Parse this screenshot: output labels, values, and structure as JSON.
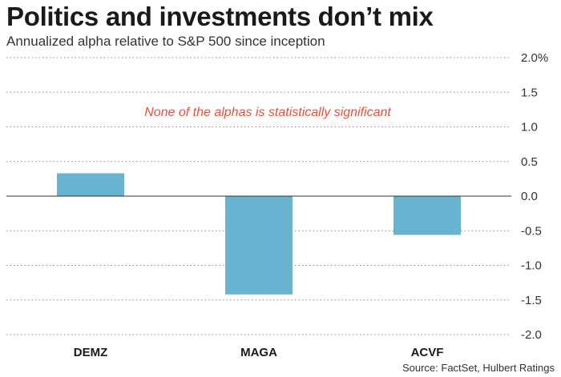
{
  "title": "Politics and investments don’t mix",
  "subtitle": "Annualized alpha relative to S&P 500 since inception",
  "source": "Source: FactSet, Hulbert Ratings",
  "colors": {
    "bar": "#67b3d0",
    "annotation": "#e8503a",
    "grid": "#888888",
    "zero": "#333333"
  },
  "chart_data": {
    "type": "bar",
    "title": "Politics and investments don’t mix",
    "subtitle": "Annualized alpha relative to S&P 500 since inception",
    "categories": [
      "DEMZ",
      "MAGA",
      "ACVF"
    ],
    "values": [
      0.33,
      -1.42,
      -0.56
    ],
    "unit": "%",
    "ylim": [
      -2.0,
      2.0
    ],
    "yticks": [
      2.0,
      1.5,
      1.0,
      0.5,
      0.0,
      -0.5,
      -1.0,
      -1.5,
      -2.0
    ],
    "ytick_labels": [
      "2.0%",
      "1.5",
      "1.0",
      "0.5",
      "0.0",
      "-0.5",
      "-1.0",
      "-1.5",
      "-2.0"
    ],
    "annotation": "None of the alphas is statistically significant",
    "grid": "dotted horizontal",
    "yaxis_side": "right",
    "legend": "none"
  }
}
